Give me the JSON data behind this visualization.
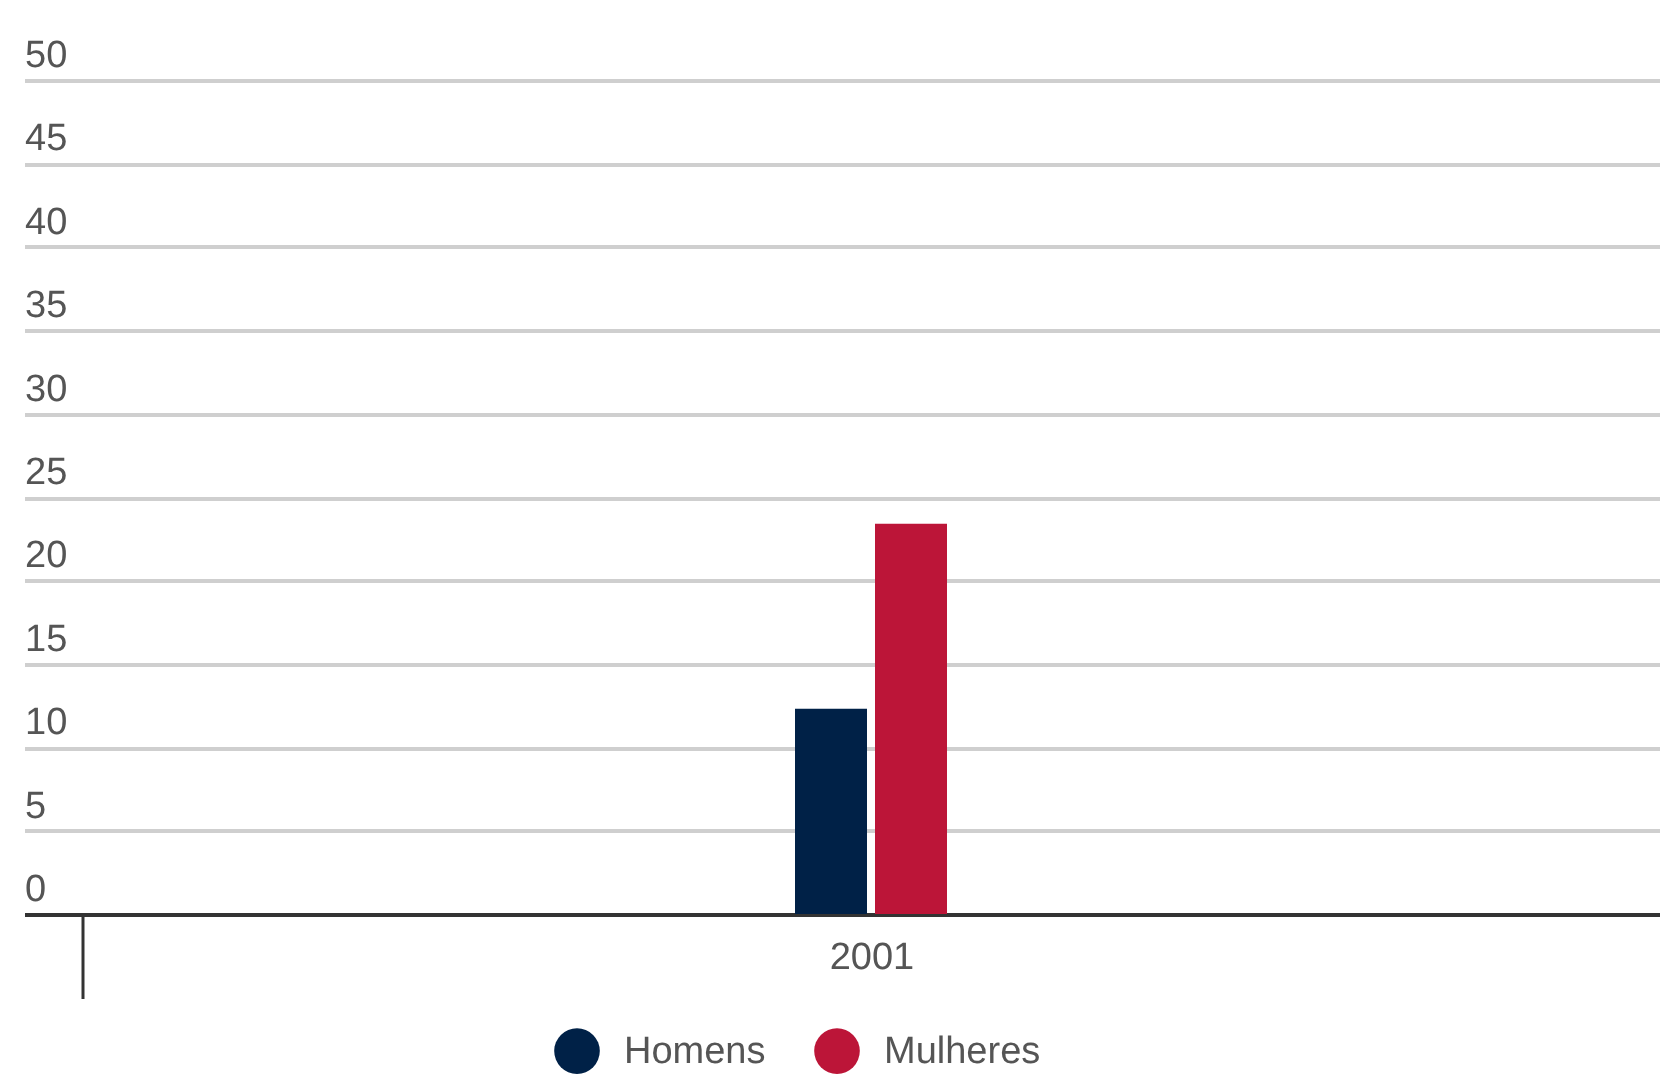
{
  "chart_data": {
    "type": "bar",
    "categories": [
      "2001"
    ],
    "series": [
      {
        "name": "Homens",
        "color": "#002147",
        "values": [
          12.3
        ]
      },
      {
        "name": "Mulheres",
        "color": "#bc1538",
        "values": [
          23.4
        ]
      }
    ],
    "ylim": [
      0,
      50
    ],
    "yticks": [
      0,
      5,
      10,
      15,
      20,
      25,
      30,
      35,
      40,
      45,
      50
    ],
    "grid": "y",
    "legend": "bottom"
  }
}
